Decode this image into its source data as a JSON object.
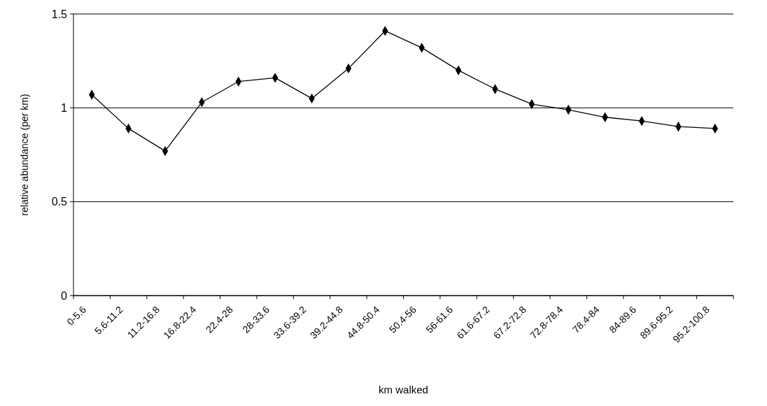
{
  "chart_data": {
    "type": "line",
    "xlabel": "km walked",
    "ylabel": "relative abundance (per km)",
    "categories": [
      "0-5.6",
      "5.6-11.2",
      "11.2-16.8",
      "16.8-22.4",
      "22.4-28",
      "28-33.6",
      "33.6-39.2",
      "39.2-44.8",
      "44.8-50.4",
      "50.4-56",
      "56-61.6",
      "61.6-67.2",
      "67.2-72.8",
      "72.8-78.4",
      "78.4-84",
      "84-89.6",
      "89.6-95.2",
      "95.2-100.8"
    ],
    "series": [
      {
        "color": "#000000",
        "values": [
          1.07,
          0.89,
          0.77,
          1.03,
          1.14,
          1.16,
          1.05,
          1.21,
          1.41,
          1.32,
          1.2,
          1.1,
          1.02,
          0.99,
          0.95,
          0.93,
          0.9,
          0.89
        ]
      }
    ],
    "ylim": [
      0,
      1.5
    ],
    "yticks": [
      0,
      0.5,
      1,
      1.5
    ],
    "grid": "y",
    "marker": "diamond"
  }
}
